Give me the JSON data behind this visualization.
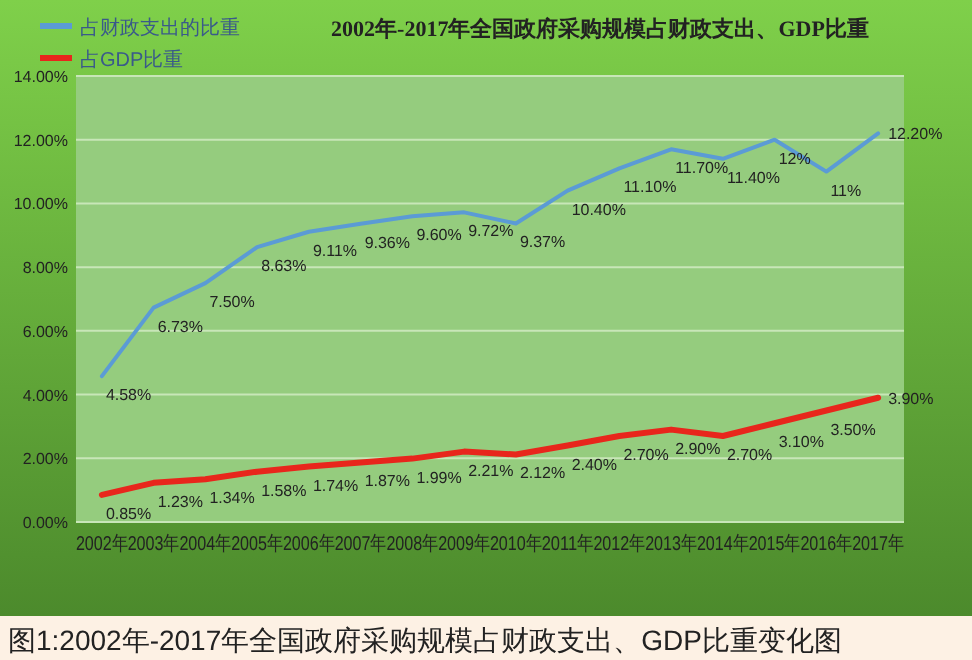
{
  "chart_data": {
    "type": "line",
    "title": "2002年-2017年全国政府采购规模占财政支出、GDP比重",
    "categories": [
      "2002年",
      "2003年",
      "2004年",
      "2005年",
      "2006年",
      "2007年",
      "2008年",
      "2009年",
      "2010年",
      "2011年",
      "2012年",
      "2013年",
      "2014年",
      "2015年",
      "2016年",
      "2017年"
    ],
    "series": [
      {
        "name": "占财政支出的比重",
        "color": "#5b9bd5",
        "values": [
          4.58,
          6.73,
          7.5,
          8.63,
          9.11,
          9.36,
          9.6,
          9.72,
          9.37,
          10.4,
          11.1,
          11.7,
          11.4,
          12,
          11,
          12.2
        ],
        "value_labels": [
          "4.58%",
          "6.73%",
          "7.50%",
          "8.63%",
          "9.11%",
          "9.36%",
          "9.60%",
          "9.72%",
          "9.37%",
          "10.40%",
          "11.10%",
          "11.70%",
          "11.40%",
          "12%",
          "11%",
          "12.20%"
        ]
      },
      {
        "name": "占GDP比重",
        "color": "#e8261c",
        "values": [
          0.85,
          1.23,
          1.34,
          1.58,
          1.74,
          1.87,
          1.99,
          2.21,
          2.12,
          2.4,
          2.7,
          2.9,
          2.7,
          3.1,
          3.5,
          3.9
        ],
        "value_labels": [
          "0.85%",
          "1.23%",
          "1.34%",
          "1.58%",
          "1.74%",
          "1.87%",
          "1.99%",
          "2.21%",
          "2.12%",
          "2.40%",
          "2.70%",
          "2.90%",
          "2.70%",
          "3.10%",
          "3.50%",
          "3.90%"
        ]
      }
    ],
    "ylim": [
      0,
      14
    ],
    "yticks": [
      {
        "value": 0,
        "label": "0.00%"
      },
      {
        "value": 2,
        "label": "2.00%"
      },
      {
        "value": 4,
        "label": "4.00%"
      },
      {
        "value": 6,
        "label": "6.00%"
      },
      {
        "value": 8,
        "label": "8.00%"
      },
      {
        "value": 10,
        "label": "10.00%"
      },
      {
        "value": 12,
        "label": "12.00%"
      },
      {
        "value": 14,
        "label": "14.00%"
      }
    ],
    "grid": "y",
    "legend": "top left",
    "annotations": [
      "图1:2002年-2017年全国政府采购规模占财政支出、GDP比重变化图"
    ]
  }
}
